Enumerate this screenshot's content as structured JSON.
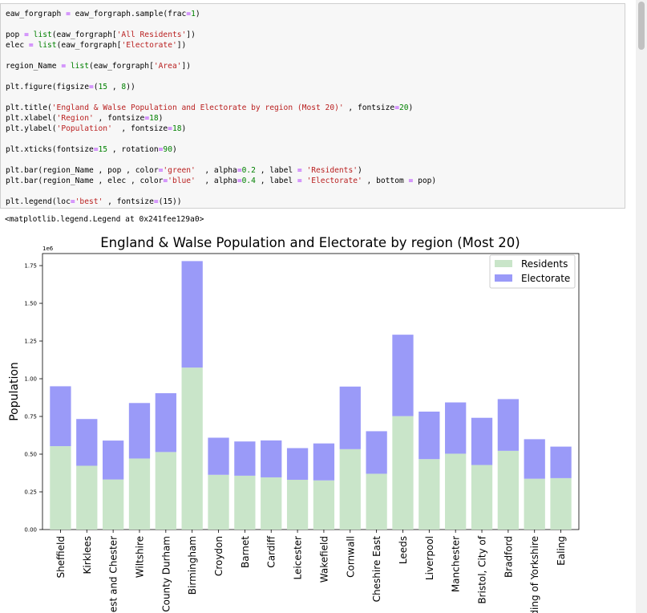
{
  "code_cell": {
    "lines": [
      [
        {
          "t": "eaw_forgraph "
        },
        {
          "t": "=",
          "c": "op"
        },
        {
          "t": " eaw_forgraph.sample(frac"
        },
        {
          "t": "=",
          "c": "op"
        },
        {
          "t": "1",
          "c": "num"
        },
        {
          "t": ")"
        }
      ],
      [],
      [
        {
          "t": "pop "
        },
        {
          "t": "=",
          "c": "op"
        },
        {
          "t": " "
        },
        {
          "t": "list",
          "c": "fn"
        },
        {
          "t": "(eaw_forgraph["
        },
        {
          "t": "'All Residents'",
          "c": "str"
        },
        {
          "t": "])"
        }
      ],
      [
        {
          "t": "elec "
        },
        {
          "t": "=",
          "c": "op"
        },
        {
          "t": " "
        },
        {
          "t": "list",
          "c": "fn"
        },
        {
          "t": "(eaw_forgraph["
        },
        {
          "t": "'Electorate'",
          "c": "str"
        },
        {
          "t": "])"
        }
      ],
      [],
      [
        {
          "t": "region_Name "
        },
        {
          "t": "=",
          "c": "op"
        },
        {
          "t": " "
        },
        {
          "t": "list",
          "c": "fn"
        },
        {
          "t": "(eaw_forgraph["
        },
        {
          "t": "'Area'",
          "c": "str"
        },
        {
          "t": "])"
        }
      ],
      [],
      [
        {
          "t": "plt.figure(figsize"
        },
        {
          "t": "=",
          "c": "op"
        },
        {
          "t": "("
        },
        {
          "t": "15",
          "c": "num"
        },
        {
          "t": " , "
        },
        {
          "t": "8",
          "c": "num"
        },
        {
          "t": "))"
        }
      ],
      [],
      [
        {
          "t": "plt.title("
        },
        {
          "t": "'England & Walse Population and Electorate by region (Most 20)'",
          "c": "str"
        },
        {
          "t": " , fontsize"
        },
        {
          "t": "=",
          "c": "op"
        },
        {
          "t": "20",
          "c": "num"
        },
        {
          "t": ")"
        }
      ],
      [
        {
          "t": "plt.xlabel("
        },
        {
          "t": "'Region'",
          "c": "str"
        },
        {
          "t": " , fontsize"
        },
        {
          "t": "=",
          "c": "op"
        },
        {
          "t": "18",
          "c": "num"
        },
        {
          "t": ")"
        }
      ],
      [
        {
          "t": "plt.ylabel("
        },
        {
          "t": "'Population'",
          "c": "str"
        },
        {
          "t": "  , fontsize"
        },
        {
          "t": "=",
          "c": "op"
        },
        {
          "t": "18",
          "c": "num"
        },
        {
          "t": ")"
        }
      ],
      [],
      [
        {
          "t": "plt.xticks(fontsize"
        },
        {
          "t": "=",
          "c": "op"
        },
        {
          "t": "15",
          "c": "num"
        },
        {
          "t": " , rotation"
        },
        {
          "t": "=",
          "c": "op"
        },
        {
          "t": "90",
          "c": "num"
        },
        {
          "t": ")"
        }
      ],
      [],
      [
        {
          "t": "plt.bar(region_Name , pop , color"
        },
        {
          "t": "=",
          "c": "op"
        },
        {
          "t": "'green'",
          "c": "str"
        },
        {
          "t": "  , alpha"
        },
        {
          "t": "=",
          "c": "op"
        },
        {
          "t": "0.2",
          "c": "num"
        },
        {
          "t": " , label "
        },
        {
          "t": "=",
          "c": "op"
        },
        {
          "t": " "
        },
        {
          "t": "'Residents'",
          "c": "str"
        },
        {
          "t": ")"
        }
      ],
      [
        {
          "t": "plt.bar(region_Name , elec , color"
        },
        {
          "t": "=",
          "c": "op"
        },
        {
          "t": "'blue'",
          "c": "str"
        },
        {
          "t": "  , alpha"
        },
        {
          "t": "=",
          "c": "op"
        },
        {
          "t": "0.4",
          "c": "num"
        },
        {
          "t": " , label "
        },
        {
          "t": "=",
          "c": "op"
        },
        {
          "t": " "
        },
        {
          "t": "'Electorate'",
          "c": "str"
        },
        {
          "t": " , bottom "
        },
        {
          "t": "=",
          "c": "op"
        },
        {
          "t": " pop)"
        }
      ],
      [],
      [
        {
          "t": "plt.legend(loc"
        },
        {
          "t": "=",
          "c": "op"
        },
        {
          "t": "'best'",
          "c": "str"
        },
        {
          "t": " , fontsize"
        },
        {
          "t": "=",
          "c": "op"
        },
        {
          "t": "(15))"
        }
      ]
    ]
  },
  "output_text": "<matplotlib.legend.Legend at 0x241fee129a0>",
  "chart_data": {
    "type": "bar",
    "stacked": true,
    "title": "England & Walse Population and Electorate by region (Most 20)",
    "xlabel": "Region",
    "ylabel": "Population",
    "scale_label": "1e6",
    "ylim": [
      0,
      1.83
    ],
    "yticks": [
      0.0,
      0.25,
      0.5,
      0.75,
      1.0,
      1.25,
      1.5,
      1.75
    ],
    "ytick_labels": [
      "0.00",
      "0.25",
      "0.50",
      "0.75",
      "1.00",
      "1.25",
      "1.50",
      "1.75"
    ],
    "categories": [
      "Sheffield",
      "Kirklees",
      "Cheshire West and Chester",
      "Wiltshire",
      "County Durham",
      "Birmingham",
      "Croydon",
      "Barnet",
      "Cardiff",
      "Leicester",
      "Wakefield",
      "Cornwall",
      "Cheshire East",
      "Leeds",
      "Liverpool",
      "Manchester",
      "Bristol, City of",
      "Bradford",
      "East Riding of Yorkshire",
      "Ealing"
    ],
    "category_labels": [
      "Sheffield",
      "Kirklees",
      "est and Chester",
      "Wiltshire",
      "County Durham",
      "Birmingham",
      "Croydon",
      "Barnet",
      "Cardiff",
      "Leicester",
      "Wakefield",
      "Cornwall",
      "Cheshire East",
      "Leeds",
      "Liverpool",
      "Manchester",
      "Bristol, City of",
      "Bradford",
      "ding of Yorkshire",
      "Ealing"
    ],
    "series": [
      {
        "name": "Residents",
        "color": "#c9e5c9",
        "values": [
          0.553,
          0.423,
          0.332,
          0.471,
          0.514,
          1.074,
          0.363,
          0.357,
          0.346,
          0.33,
          0.326,
          0.533,
          0.37,
          0.752,
          0.467,
          0.503,
          0.428,
          0.522,
          0.337,
          0.341
        ]
      },
      {
        "name": "Electorate",
        "color": "#9a9af8",
        "values": [
          0.397,
          0.31,
          0.258,
          0.368,
          0.39,
          0.706,
          0.246,
          0.227,
          0.245,
          0.21,
          0.245,
          0.415,
          0.282,
          0.54,
          0.315,
          0.34,
          0.313,
          0.343,
          0.262,
          0.209
        ]
      }
    ],
    "legend_position": "top-right"
  }
}
